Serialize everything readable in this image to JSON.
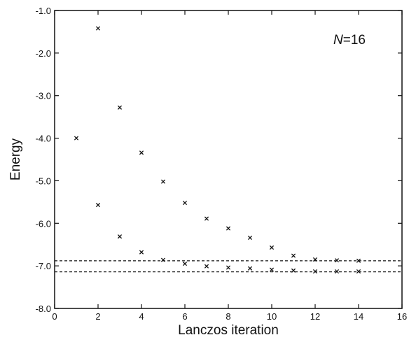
{
  "chart_data": {
    "type": "scatter",
    "title": "",
    "xlabel": "Lanczos iteration",
    "ylabel": "Energy",
    "xlim": [
      0,
      16
    ],
    "ylim": [
      -8.0,
      -1.0
    ],
    "x_ticks": [
      0,
      2,
      4,
      6,
      8,
      10,
      12,
      14,
      16
    ],
    "x_tick_labels": [
      "0",
      "2",
      "4",
      "6",
      "8",
      "10",
      "12",
      "14",
      "16"
    ],
    "y_ticks": [
      -1.0,
      -2.0,
      -3.0,
      -4.0,
      -5.0,
      -6.0,
      -7.0,
      -8.0
    ],
    "y_tick_labels": [
      "-1.0",
      "-2.0",
      "-3.0",
      "-4.0",
      "-5.0",
      "-6.0",
      "-7.0",
      "-8.0"
    ],
    "grid": false,
    "legend": "none",
    "marker": "x",
    "annotation": {
      "italic": "N",
      "rest": "=16"
    },
    "series": [
      {
        "x": [
          1,
          2,
          3,
          4,
          5,
          6,
          7,
          8,
          9,
          10,
          11,
          12,
          13,
          14
        ],
        "values": [
          -4.0,
          -1.42,
          -3.28,
          -4.34,
          -5.02,
          -5.52,
          -5.89,
          -6.12,
          -6.34,
          -6.57,
          -6.76,
          -6.85,
          -6.87,
          -6.88
        ]
      },
      {
        "x": [
          2,
          3,
          4,
          5,
          6,
          7,
          8,
          9,
          10,
          11,
          12,
          13,
          14
        ],
        "values": [
          -5.57,
          -6.31,
          -6.68,
          -6.86,
          -6.95,
          -7.01,
          -7.04,
          -7.06,
          -7.09,
          -7.11,
          -7.13,
          -7.13,
          -7.13
        ]
      }
    ],
    "reference_lines": [
      {
        "y": -6.88,
        "style": "dashed"
      },
      {
        "y": -7.14,
        "style": "dashed"
      }
    ]
  }
}
